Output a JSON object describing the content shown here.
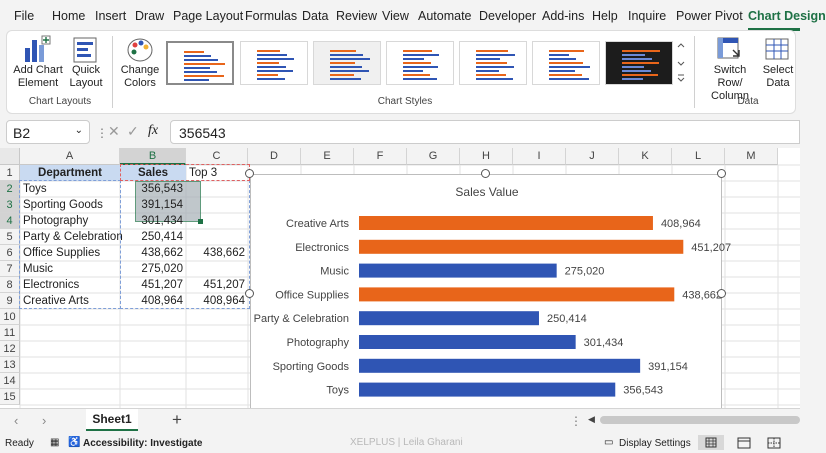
{
  "menu_tabs": [
    "File",
    "Home",
    "Insert",
    "Draw",
    "Page Layout",
    "Formulas",
    "Data",
    "Review",
    "View",
    "Automate",
    "Developer",
    "Add-ins",
    "Help",
    "Inquire",
    "Power Pivot",
    "Chart Design"
  ],
  "ribbon": {
    "add_chart_element": "Add Chart Element",
    "quick_layout": "Quick Layout",
    "change_colors": "Change Colors",
    "chart_layouts_group": "Chart Layouts",
    "chart_styles_group": "Chart Styles",
    "switch_row_column": "Switch Row/ Column",
    "select_data": "Select Data",
    "data_group": "Data"
  },
  "formula_bar": {
    "name_box": "B2",
    "fx_label": "fx",
    "value": "356543"
  },
  "columns": [
    "A",
    "B",
    "C",
    "D",
    "E",
    "F",
    "G",
    "H",
    "I",
    "J",
    "K",
    "L",
    "M"
  ],
  "rows": [
    "1",
    "2",
    "3",
    "4",
    "5",
    "6",
    "7",
    "8",
    "9",
    "10",
    "11",
    "12",
    "13",
    "14",
    "15"
  ],
  "table": {
    "headers": [
      "Department",
      "Sales",
      "Top 3"
    ],
    "rows": [
      {
        "dept": "Toys",
        "sales": "356,543",
        "top3": ""
      },
      {
        "dept": "Sporting Goods",
        "sales": "391,154",
        "top3": ""
      },
      {
        "dept": "Photography",
        "sales": "301,434",
        "top3": ""
      },
      {
        "dept": "Party & Celebration",
        "sales": "250,414",
        "top3": ""
      },
      {
        "dept": "Office Supplies",
        "sales": "438,662",
        "top3": "438,662"
      },
      {
        "dept": "Music",
        "sales": "275,020",
        "top3": ""
      },
      {
        "dept": "Electronics",
        "sales": "451,207",
        "top3": "451,207"
      },
      {
        "dept": "Creative Arts",
        "sales": "408,964",
        "top3": "408,964"
      }
    ]
  },
  "chart_data": {
    "type": "bar",
    "orientation": "horizontal",
    "title": "Sales Value",
    "categories": [
      "Creative Arts",
      "Electronics",
      "Music",
      "Office Supplies",
      "Party & Celebration",
      "Photography",
      "Sporting Goods",
      "Toys"
    ],
    "values": [
      408964,
      451207,
      275020,
      438662,
      250414,
      301434,
      391154,
      356543
    ],
    "labels": [
      "408,964",
      "451,207",
      "275,020",
      "438,662",
      "250,414",
      "301,434",
      "391,154",
      "356,543"
    ],
    "highlight": [
      true,
      true,
      false,
      true,
      false,
      false,
      false,
      false
    ],
    "colors": {
      "highlight": "#e8651a",
      "normal": "#2f55b4"
    },
    "xlim": [
      0,
      480000
    ]
  },
  "sheet_tab": "Sheet1",
  "status": {
    "ready": "Ready",
    "accessibility": "Accessibility: Investigate",
    "display_settings": "Display Settings",
    "watermark": "XELPLUS | Leila Gharani"
  },
  "colors": {
    "accent": "#1e7145"
  }
}
